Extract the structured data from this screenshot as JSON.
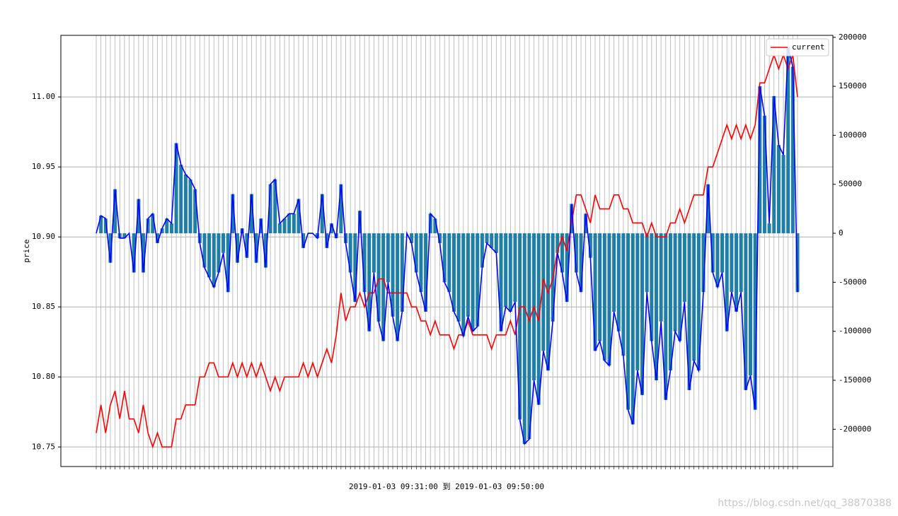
{
  "chart_data": {
    "type": "line",
    "xlabel": "2019-01-03 09:31:00 到 2019-01-03 09:50:00",
    "ylabel": "price",
    "watermark": "https://blog.csdn.net/qq_38870388",
    "grid": true,
    "legend": "upper right",
    "ylim": [
      10.736,
      11.044
    ],
    "yticks": [
      10.75,
      {
        "value": 10.8,
        "label": "10.80"
      },
      10.85,
      {
        "value": 10.9,
        "label": "10.90"
      },
      10.95,
      {
        "value": 11,
        "label": "11.00"
      }
    ],
    "y2lim": [
      -238000,
      202000
    ],
    "y2ticks": [
      -200000,
      -150000,
      -100000,
      -50000,
      0,
      50000,
      100000,
      150000,
      200000
    ],
    "series": [
      {
        "name": "current",
        "color": "#ff0000",
        "values": [
          10.76,
          10.78,
          10.76,
          10.78,
          10.79,
          10.77,
          10.79,
          10.77,
          10.77,
          10.76,
          10.78,
          10.76,
          10.75,
          10.76,
          10.75,
          10.75,
          10.75,
          10.77,
          10.77,
          10.78,
          10.78,
          10.78,
          10.8,
          10.8,
          10.81,
          10.81,
          10.8,
          10.8,
          10.8,
          10.81,
          10.8,
          10.81,
          10.8,
          10.81,
          10.8,
          10.81,
          10.8,
          10.79,
          10.8,
          10.79,
          10.8,
          10.8,
          10.8,
          10.8,
          10.81,
          10.8,
          10.81,
          10.8,
          10.81,
          10.82,
          10.81,
          10.83,
          10.86,
          10.84,
          10.85,
          10.85,
          10.86,
          10.85,
          10.86,
          10.86,
          10.87,
          10.87,
          10.86,
          10.86,
          10.86,
          10.86,
          10.86,
          10.85,
          10.85,
          10.84,
          10.84,
          10.83,
          10.84,
          10.83,
          10.83,
          10.83,
          10.82,
          10.83,
          10.83,
          10.84,
          10.83,
          10.83,
          10.83,
          10.83,
          10.82,
          10.83,
          10.83,
          10.83,
          10.84,
          10.83,
          10.85,
          10.85,
          10.84,
          10.85,
          10.84,
          10.87,
          10.86,
          10.87,
          10.89,
          10.9,
          10.89,
          10.91,
          10.93,
          10.93,
          10.92,
          10.91,
          10.93,
          10.92,
          10.92,
          10.92,
          10.93,
          10.93,
          10.92,
          10.92,
          10.91,
          10.91,
          10.91,
          10.9,
          10.91,
          10.9,
          10.9,
          10.9,
          10.91,
          10.91,
          10.92,
          10.91,
          10.92,
          10.93,
          10.93,
          10.93,
          10.95,
          10.95,
          10.96,
          10.97,
          10.98,
          10.97,
          10.98,
          10.97,
          10.98,
          10.97,
          10.98,
          11.01,
          11.01,
          11.02,
          11.03,
          11.02,
          11.03,
          11.02,
          11.03,
          11.0
        ]
      },
      {
        "color": "#0000ff",
        "bar_color": "#1f7ea8",
        "axis": "y2",
        "values": [
          0,
          18000,
          15000,
          -30000,
          45000,
          -5000,
          -5000,
          0,
          -40000,
          35000,
          -40000,
          15000,
          20000,
          -10000,
          5000,
          15000,
          10000,
          92000,
          70000,
          60000,
          55000,
          45000,
          -10000,
          -35000,
          -45000,
          -55000,
          -40000,
          -20000,
          -60000,
          40000,
          -30000,
          5000,
          -25000,
          40000,
          -30000,
          15000,
          -35000,
          50000,
          55000,
          10000,
          15000,
          20000,
          20000,
          35000,
          -15000,
          0,
          0,
          -5000,
          40000,
          -15000,
          10000,
          -5000,
          50000,
          -10000,
          -40000,
          -70000,
          23000,
          -60000,
          -100000,
          -40000,
          -90000,
          -110000,
          -50000,
          -85000,
          -110000,
          -80000,
          0,
          -10000,
          -40000,
          -60000,
          -80000,
          20000,
          15000,
          -10000,
          -50000,
          -60000,
          -80000,
          -90000,
          -105000,
          -85000,
          -100000,
          -95000,
          -35000,
          -10000,
          -15000,
          -20000,
          -100000,
          -75000,
          -80000,
          -70000,
          -190000,
          -215000,
          -210000,
          -150000,
          -175000,
          -120000,
          -140000,
          -90000,
          -20000,
          -40000,
          -70000,
          30000,
          -40000,
          -60000,
          20000,
          -25000,
          -120000,
          -110000,
          -130000,
          -135000,
          -80000,
          -100000,
          -125000,
          -180000,
          -195000,
          -140000,
          -165000,
          -60000,
          -110000,
          -150000,
          -90000,
          -170000,
          -140000,
          -100000,
          -110000,
          -70000,
          -160000,
          -130000,
          -140000,
          -60000,
          50000,
          -40000,
          -55000,
          -40000,
          -100000,
          -60000,
          -80000,
          -60000,
          -160000,
          -145000,
          -180000,
          150000,
          120000,
          10000,
          140000,
          90000,
          80000,
          190000,
          170000,
          -60000
        ]
      }
    ]
  }
}
